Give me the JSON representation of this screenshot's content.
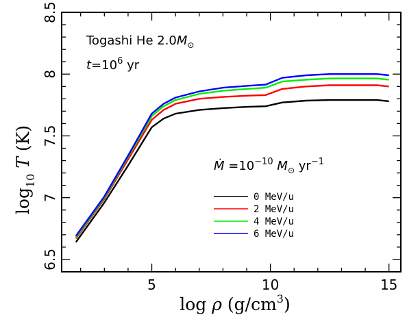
{
  "chart_data": {
    "type": "line",
    "xlabel": {
      "pre": "log ",
      "var": "ρ",
      "mid": " (g/cm",
      "sup": "3",
      "post": ")"
    },
    "ylabel": {
      "pre": "log",
      "sub": "10",
      "var": " T",
      "post": " (K)"
    },
    "xlim": [
      1.2,
      15.5
    ],
    "ylim": [
      6.4,
      8.5
    ],
    "xticks": [
      5,
      10,
      15
    ],
    "yticks": [
      6.5,
      7,
      7.5,
      8,
      8.5
    ],
    "annotations": {
      "model": "Togashi He 2.0",
      "model_mass": "M",
      "model_mass_sub": "⊙",
      "time_var": "t",
      "time_eq": "=10",
      "time_exp": "6",
      "time_unit": " yr",
      "mdot_var": "Ṁ",
      "mdot_eq": " =10",
      "mdot_exp": "−10",
      "mdot_mass": " M",
      "mdot_mass_sub": "⊙",
      "mdot_unit": " yr",
      "mdot_unit_exp": "−1"
    },
    "legend_position": "lower-right",
    "series": [
      {
        "name": "0 MeV/u",
        "color": "#000000",
        "x": [
          1.8,
          3.0,
          4.0,
          5.0,
          5.5,
          6.0,
          7.0,
          8.0,
          9.0,
          9.8,
          10.5,
          11.5,
          12.5,
          13.5,
          14.5,
          15.0
        ],
        "y": [
          6.64,
          6.96,
          7.26,
          7.57,
          7.64,
          7.68,
          7.71,
          7.725,
          7.735,
          7.74,
          7.77,
          7.785,
          7.79,
          7.79,
          7.79,
          7.78
        ]
      },
      {
        "name": "2 MeV/u",
        "color": "#ff0000",
        "x": [
          1.8,
          3.0,
          4.0,
          5.0,
          5.5,
          6.0,
          7.0,
          8.0,
          9.0,
          9.8,
          10.5,
          11.5,
          12.5,
          13.5,
          14.5,
          15.0
        ],
        "y": [
          6.67,
          6.99,
          7.31,
          7.63,
          7.71,
          7.76,
          7.8,
          7.815,
          7.825,
          7.83,
          7.88,
          7.9,
          7.91,
          7.91,
          7.91,
          7.9
        ]
      },
      {
        "name": "4 MeV/u",
        "color": "#00ee00",
        "x": [
          1.8,
          3.0,
          4.0,
          5.0,
          5.5,
          6.0,
          7.0,
          8.0,
          9.0,
          9.8,
          10.5,
          11.5,
          12.5,
          13.5,
          14.5,
          15.0
        ],
        "y": [
          6.68,
          7.0,
          7.33,
          7.66,
          7.74,
          7.79,
          7.84,
          7.865,
          7.88,
          7.89,
          7.94,
          7.955,
          7.965,
          7.965,
          7.965,
          7.955
        ]
      },
      {
        "name": "6 MeV/u",
        "color": "#0000ff",
        "x": [
          1.8,
          3.0,
          4.0,
          5.0,
          5.5,
          6.0,
          7.0,
          8.0,
          9.0,
          9.8,
          10.5,
          11.5,
          12.5,
          13.5,
          14.5,
          15.0
        ],
        "y": [
          6.69,
          7.01,
          7.34,
          7.68,
          7.76,
          7.81,
          7.86,
          7.89,
          7.905,
          7.915,
          7.97,
          7.99,
          8.0,
          8.0,
          8.0,
          7.99
        ]
      }
    ]
  }
}
